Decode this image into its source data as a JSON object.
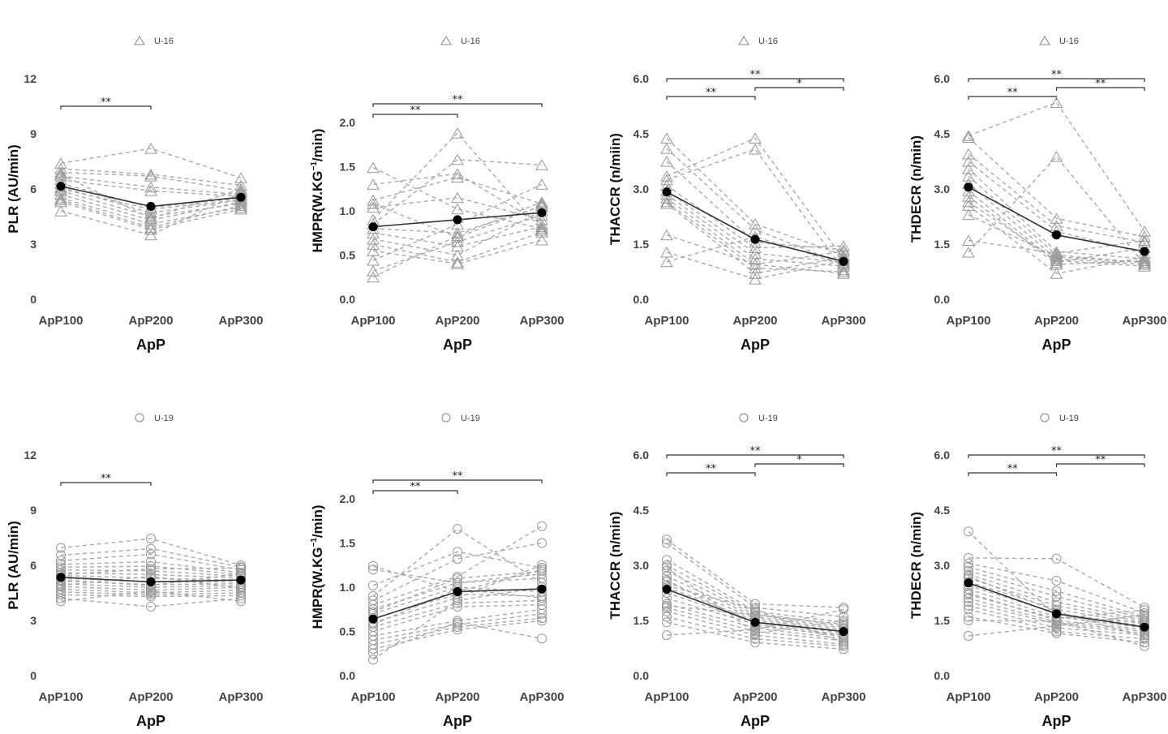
{
  "chart_data": [
    {
      "type": "line",
      "panel": "top-1",
      "group": "U-16",
      "marker": "triangle",
      "legend": "U-16",
      "categories": [
        "ApP100",
        "ApP200",
        "ApP300"
      ],
      "xlabel": "ApP",
      "ylabel": "PLR (AU/min)",
      "ylim": [
        0,
        12
      ],
      "yticks": [
        "0",
        "3",
        "6",
        "9",
        "12"
      ],
      "ytick_values": [
        0,
        3,
        6,
        9,
        12
      ],
      "mean": [
        6.15,
        5.05,
        5.55
      ],
      "subjects": [
        [
          7.4,
          8.2,
          6.6
        ],
        [
          7.1,
          6.8,
          6.2
        ],
        [
          6.9,
          6.7,
          5.9
        ],
        [
          6.7,
          6.1,
          5.7
        ],
        [
          6.5,
          5.9,
          5.6
        ],
        [
          6.3,
          5.0,
          5.5
        ],
        [
          6.1,
          4.7,
          5.4
        ],
        [
          5.9,
          4.5,
          5.2
        ],
        [
          5.7,
          4.3,
          5.3
        ],
        [
          5.5,
          4.1,
          5.0
        ],
        [
          5.4,
          3.9,
          5.1
        ],
        [
          5.3,
          3.8,
          4.9
        ],
        [
          4.8,
          3.5,
          5.8
        ],
        [
          6.8,
          4.4,
          6.0
        ],
        [
          6.0,
          4.9,
          5.4
        ]
      ],
      "significance": [
        {
          "from": "ApP100",
          "to": "ApP200",
          "label": "**",
          "level": 1
        }
      ]
    },
    {
      "type": "line",
      "panel": "top-2",
      "group": "U-16",
      "marker": "triangle",
      "legend": "U-16",
      "categories": [
        "ApP100",
        "ApP200",
        "ApP300"
      ],
      "xlabel": "ApP",
      "ylabel_main": "HMPR(W.KG",
      "ylabel_sup": "−1",
      "ylabel_tail": "/min)",
      "ylim": [
        0,
        2.5
      ],
      "yticks": [
        "0.0",
        "0.5",
        "1.0",
        "1.5",
        "2.0"
      ],
      "ytick_values": [
        0,
        0.5,
        1.0,
        1.5,
        2.0
      ],
      "mean": [
        0.82,
        0.9,
        0.98
      ],
      "subjects": [
        [
          1.49,
          1.02,
          0.8
        ],
        [
          1.3,
          1.42,
          0.85
        ],
        [
          1.12,
          1.38,
          1.08
        ],
        [
          1.08,
          0.7,
          1.06
        ],
        [
          1.04,
          1.15,
          0.9
        ],
        [
          0.9,
          1.88,
          0.78
        ],
        [
          0.85,
          1.58,
          1.52
        ],
        [
          0.8,
          0.75,
          1.05
        ],
        [
          0.75,
          0.6,
          0.82
        ],
        [
          0.68,
          0.5,
          1.0
        ],
        [
          0.62,
          0.42,
          0.76
        ],
        [
          0.55,
          0.4,
          0.67
        ],
        [
          0.44,
          0.85,
          1.3
        ],
        [
          0.32,
          0.65,
          0.95
        ],
        [
          0.25,
          0.72,
          1.1
        ]
      ],
      "significance": [
        {
          "from": "ApP100",
          "to": "ApP200",
          "label": "**",
          "level": 1
        },
        {
          "from": "ApP100",
          "to": "ApP300",
          "label": "**",
          "level": 2
        }
      ]
    },
    {
      "type": "line",
      "panel": "top-3",
      "group": "U-16",
      "marker": "triangle",
      "legend": "U-16",
      "categories": [
        "ApP100",
        "ApP200",
        "ApP300"
      ],
      "xlabel": "ApP",
      "ylabel": "THACCR (n/miin)",
      "ylim": [
        0,
        6
      ],
      "yticks": [
        "0.0",
        "1.5",
        "3.0",
        "4.5",
        "6.0"
      ],
      "ytick_values": [
        0,
        1.5,
        3.0,
        4.5,
        6.0
      ],
      "mean": [
        2.92,
        1.63,
        1.03
      ],
      "subjects": [
        [
          4.38,
          2.05,
          1.2
        ],
        [
          4.1,
          1.9,
          0.95
        ],
        [
          3.75,
          1.55,
          1.35
        ],
        [
          3.35,
          4.38,
          1.1
        ],
        [
          3.25,
          4.08,
          0.8
        ],
        [
          3.1,
          1.4,
          1.45
        ],
        [
          2.95,
          1.25,
          1.0
        ],
        [
          2.85,
          1.1,
          0.9
        ],
        [
          2.75,
          0.95,
          1.3
        ],
        [
          2.65,
          0.85,
          0.75
        ],
        [
          2.6,
          0.7,
          1.15
        ],
        [
          1.75,
          0.95,
          0.7
        ],
        [
          1.28,
          0.55,
          1.05
        ],
        [
          1.02,
          1.7,
          0.95
        ]
      ],
      "significance": [
        {
          "from": "ApP100",
          "to": "ApP200",
          "label": "**",
          "level": 1
        },
        {
          "from": "ApP200",
          "to": "ApP300",
          "label": "*",
          "level": 2
        },
        {
          "from": "ApP100",
          "to": "ApP300",
          "label": "**",
          "level": 3
        }
      ]
    },
    {
      "type": "line",
      "panel": "top-4",
      "group": "U-16",
      "marker": "triangle",
      "legend": "U-16",
      "categories": [
        "ApP100",
        "ApP200",
        "ApP300"
      ],
      "xlabel": "ApP",
      "ylabel": "THDECR (n/min)",
      "ylim": [
        0,
        6
      ],
      "yticks": [
        "0.0",
        "1.5",
        "3.0",
        "4.5",
        "6.0"
      ],
      "ytick_values": [
        0,
        1.5,
        3.0,
        4.5,
        6.0
      ],
      "mean": [
        3.05,
        1.75,
        1.3
      ],
      "subjects": [
        [
          4.45,
          5.35,
          1.85
        ],
        [
          4.4,
          2.2,
          1.7
        ],
        [
          3.95,
          2.0,
          1.55
        ],
        [
          3.75,
          1.85,
          1.25
        ],
        [
          3.55,
          1.3,
          1.1
        ],
        [
          3.35,
          1.2,
          1.0
        ],
        [
          3.15,
          1.1,
          0.95
        ],
        [
          2.95,
          1.0,
          1.4
        ],
        [
          2.8,
          0.95,
          1.05
        ],
        [
          2.65,
          1.05,
          0.9
        ],
        [
          2.55,
          0.7,
          1.15
        ],
        [
          2.3,
          1.15,
          1.0
        ],
        [
          1.6,
          1.25,
          1.6
        ],
        [
          1.28,
          3.88,
          0.95
        ]
      ],
      "significance": [
        {
          "from": "ApP100",
          "to": "ApP200",
          "label": "**",
          "level": 1
        },
        {
          "from": "ApP200",
          "to": "ApP300",
          "label": "**",
          "level": 2
        },
        {
          "from": "ApP100",
          "to": "ApP300",
          "label": "**",
          "level": 3
        }
      ]
    },
    {
      "type": "line",
      "panel": "bottom-1",
      "group": "U-19",
      "marker": "circle",
      "legend": "U-19",
      "categories": [
        "ApP100",
        "ApP200",
        "ApP300"
      ],
      "xlabel": "ApP",
      "ylabel": "PLR (AU/min)",
      "ylim": [
        0,
        12
      ],
      "yticks": [
        "0",
        "3",
        "6",
        "9",
        "12"
      ],
      "ytick_values": [
        0,
        3,
        6,
        9,
        12
      ],
      "mean": [
        5.35,
        5.1,
        5.2
      ],
      "subjects": [
        [
          6.95,
          7.45,
          6.0
        ],
        [
          6.55,
          6.9,
          5.9
        ],
        [
          6.25,
          6.6,
          5.75
        ],
        [
          6.05,
          6.2,
          5.6
        ],
        [
          5.9,
          5.95,
          5.5
        ],
        [
          5.75,
          5.7,
          5.4
        ],
        [
          5.6,
          5.5,
          5.3
        ],
        [
          5.45,
          5.3,
          5.2
        ],
        [
          5.3,
          5.1,
          5.1
        ],
        [
          5.15,
          4.95,
          5.0
        ],
        [
          5.0,
          4.8,
          4.9
        ],
        [
          4.85,
          4.65,
          4.8
        ],
        [
          4.7,
          4.5,
          4.65
        ],
        [
          4.55,
          4.4,
          4.5
        ],
        [
          4.4,
          4.3,
          4.35
        ],
        [
          4.2,
          3.75,
          4.2
        ],
        [
          4.05,
          4.6,
          4.05
        ],
        [
          5.5,
          5.8,
          5.85
        ],
        [
          5.2,
          4.9,
          5.55
        ],
        [
          4.9,
          5.4,
          4.75
        ]
      ],
      "significance": [
        {
          "from": "ApP100",
          "to": "ApP200",
          "label": "**",
          "level": 1
        }
      ]
    },
    {
      "type": "line",
      "panel": "bottom-2",
      "group": "U-19",
      "marker": "circle",
      "legend": "U-19",
      "categories": [
        "ApP100",
        "ApP200",
        "ApP300"
      ],
      "xlabel": "ApP",
      "ylabel_main": "HMPR(W.KG",
      "ylabel_sup": "−1",
      "ylabel_tail": "/min)",
      "ylim": [
        0,
        2.5
      ],
      "yticks": [
        "0.0",
        "0.5",
        "1.0",
        "1.5",
        "2.0"
      ],
      "ytick_values": [
        0,
        0.5,
        1.0,
        1.5,
        2.0
      ],
      "mean": [
        0.64,
        0.95,
        0.98
      ],
      "subjects": [
        [
          1.24,
          0.95,
          1.2
        ],
        [
          1.2,
          1.05,
          1.15
        ],
        [
          1.02,
          1.4,
          1.22
        ],
        [
          0.9,
          1.66,
          1.05
        ],
        [
          0.85,
          1.32,
          1.5
        ],
        [
          0.8,
          1.12,
          1.69
        ],
        [
          0.75,
          1.05,
          1.1
        ],
        [
          0.7,
          1.0,
          0.95
        ],
        [
          0.65,
          0.92,
          0.9
        ],
        [
          0.6,
          0.88,
          1.25
        ],
        [
          0.55,
          0.82,
          0.85
        ],
        [
          0.5,
          0.78,
          0.8
        ],
        [
          0.45,
          0.62,
          0.75
        ],
        [
          0.4,
          0.58,
          0.7
        ],
        [
          0.35,
          0.55,
          0.65
        ],
        [
          0.3,
          0.52,
          0.62
        ],
        [
          0.25,
          0.6,
          0.42
        ],
        [
          0.18,
          0.85,
          1.0
        ],
        [
          0.72,
          1.1,
          1.18
        ],
        [
          0.58,
          0.98,
          0.88
        ]
      ],
      "significance": [
        {
          "from": "ApP100",
          "to": "ApP200",
          "label": "**",
          "level": 1
        },
        {
          "from": "ApP100",
          "to": "ApP300",
          "label": "**",
          "level": 2
        }
      ]
    },
    {
      "type": "line",
      "panel": "bottom-3",
      "group": "U-19",
      "marker": "circle",
      "legend": "U-19",
      "categories": [
        "ApP100",
        "ApP200",
        "ApP300"
      ],
      "xlabel": "ApP",
      "ylabel": "THACCR (n/min)",
      "ylim": [
        0,
        6
      ],
      "yticks": [
        "0.0",
        "1.5",
        "3.0",
        "4.5",
        "6.0"
      ],
      "ytick_values": [
        0,
        1.5,
        3.0,
        4.5,
        6.0
      ],
      "mean": [
        2.35,
        1.45,
        1.2
      ],
      "subjects": [
        [
          3.7,
          1.95,
          1.85
        ],
        [
          3.6,
          1.85,
          1.6
        ],
        [
          3.15,
          1.75,
          1.45
        ],
        [
          3.0,
          1.7,
          1.35
        ],
        [
          2.85,
          1.65,
          1.3
        ],
        [
          2.7,
          1.6,
          1.25
        ],
        [
          2.55,
          1.55,
          1.2
        ],
        [
          2.4,
          1.5,
          1.15
        ],
        [
          2.25,
          1.45,
          1.1
        ],
        [
          2.1,
          1.4,
          1.05
        ],
        [
          1.95,
          1.3,
          1.0
        ],
        [
          1.85,
          1.2,
          0.95
        ],
        [
          1.75,
          1.1,
          0.85
        ],
        [
          1.6,
          1.0,
          0.8
        ],
        [
          1.45,
          0.9,
          0.72
        ],
        [
          1.1,
          1.25,
          1.8
        ],
        [
          2.95,
          1.15,
          1.5
        ],
        [
          2.6,
          1.35,
          1.1
        ],
        [
          1.9,
          1.65,
          1.4
        ],
        [
          2.45,
          1.8,
          0.9
        ]
      ],
      "significance": [
        {
          "from": "ApP100",
          "to": "ApP200",
          "label": "**",
          "level": 1
        },
        {
          "from": "ApP200",
          "to": "ApP300",
          "label": "*",
          "level": 2
        },
        {
          "from": "ApP100",
          "to": "ApP300",
          "label": "**",
          "level": 3
        }
      ]
    },
    {
      "type": "line",
      "panel": "bottom-4",
      "group": "U-19",
      "marker": "circle",
      "legend": "U-19",
      "categories": [
        "ApP100",
        "ApP200",
        "ApP300"
      ],
      "xlabel": "ApP",
      "ylabel": "THDECR (n/min)",
      "ylim": [
        0,
        6
      ],
      "yticks": [
        "0.0",
        "1.5",
        "3.0",
        "4.5",
        "6.0"
      ],
      "ytick_values": [
        0,
        1.5,
        3.0,
        4.5,
        6.0
      ],
      "mean": [
        2.52,
        1.68,
        1.32
      ],
      "subjects": [
        [
          3.92,
          1.6,
          1.45
        ],
        [
          3.2,
          3.18,
          1.85
        ],
        [
          3.05,
          2.58,
          1.7
        ],
        [
          2.95,
          2.3,
          1.6
        ],
        [
          2.85,
          2.15,
          1.55
        ],
        [
          2.75,
          2.0,
          1.5
        ],
        [
          2.65,
          1.9,
          1.45
        ],
        [
          2.55,
          1.8,
          1.4
        ],
        [
          2.45,
          1.7,
          1.35
        ],
        [
          2.35,
          1.6,
          1.3
        ],
        [
          2.25,
          1.5,
          1.25
        ],
        [
          2.1,
          1.45,
          1.2
        ],
        [
          2.0,
          1.4,
          1.15
        ],
        [
          1.9,
          1.3,
          1.1
        ],
        [
          1.8,
          1.2,
          1.0
        ],
        [
          1.6,
          1.15,
          0.9
        ],
        [
          1.5,
          1.48,
          0.8
        ],
        [
          1.08,
          1.35,
          1.65
        ],
        [
          2.7,
          1.75,
          1.05
        ],
        [
          2.2,
          1.55,
          1.78
        ]
      ],
      "significance": [
        {
          "from": "ApP100",
          "to": "ApP200",
          "label": "**",
          "level": 1
        },
        {
          "from": "ApP200",
          "to": "ApP300",
          "label": "**",
          "level": 2
        },
        {
          "from": "ApP100",
          "to": "ApP300",
          "label": "**",
          "level": 3
        }
      ]
    }
  ]
}
